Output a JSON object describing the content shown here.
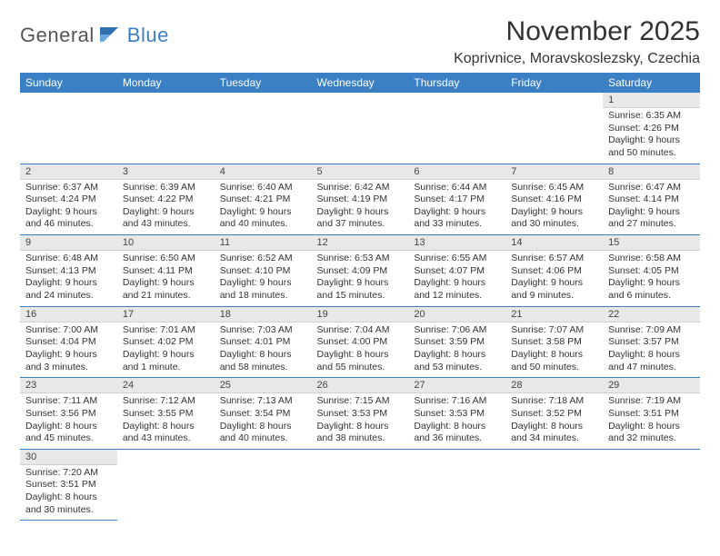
{
  "logo": {
    "part1": "General",
    "part2": "Blue"
  },
  "title": "November 2025",
  "location": "Koprivnice, Moravskoslezsky, Czechia",
  "headers": [
    "Sunday",
    "Monday",
    "Tuesday",
    "Wednesday",
    "Thursday",
    "Friday",
    "Saturday"
  ],
  "colors": {
    "header_bg": "#3b7fc4",
    "header_fg": "#ffffff",
    "daynum_bg": "#e8e8e8",
    "border": "#3b7fc4",
    "text": "#333333"
  },
  "weeks": [
    [
      null,
      null,
      null,
      null,
      null,
      null,
      {
        "n": "1",
        "sr": "Sunrise: 6:35 AM",
        "ss": "Sunset: 4:26 PM",
        "dl": "Daylight: 9 hours and 50 minutes."
      }
    ],
    [
      {
        "n": "2",
        "sr": "Sunrise: 6:37 AM",
        "ss": "Sunset: 4:24 PM",
        "dl": "Daylight: 9 hours and 46 minutes."
      },
      {
        "n": "3",
        "sr": "Sunrise: 6:39 AM",
        "ss": "Sunset: 4:22 PM",
        "dl": "Daylight: 9 hours and 43 minutes."
      },
      {
        "n": "4",
        "sr": "Sunrise: 6:40 AM",
        "ss": "Sunset: 4:21 PM",
        "dl": "Daylight: 9 hours and 40 minutes."
      },
      {
        "n": "5",
        "sr": "Sunrise: 6:42 AM",
        "ss": "Sunset: 4:19 PM",
        "dl": "Daylight: 9 hours and 37 minutes."
      },
      {
        "n": "6",
        "sr": "Sunrise: 6:44 AM",
        "ss": "Sunset: 4:17 PM",
        "dl": "Daylight: 9 hours and 33 minutes."
      },
      {
        "n": "7",
        "sr": "Sunrise: 6:45 AM",
        "ss": "Sunset: 4:16 PM",
        "dl": "Daylight: 9 hours and 30 minutes."
      },
      {
        "n": "8",
        "sr": "Sunrise: 6:47 AM",
        "ss": "Sunset: 4:14 PM",
        "dl": "Daylight: 9 hours and 27 minutes."
      }
    ],
    [
      {
        "n": "9",
        "sr": "Sunrise: 6:48 AM",
        "ss": "Sunset: 4:13 PM",
        "dl": "Daylight: 9 hours and 24 minutes."
      },
      {
        "n": "10",
        "sr": "Sunrise: 6:50 AM",
        "ss": "Sunset: 4:11 PM",
        "dl": "Daylight: 9 hours and 21 minutes."
      },
      {
        "n": "11",
        "sr": "Sunrise: 6:52 AM",
        "ss": "Sunset: 4:10 PM",
        "dl": "Daylight: 9 hours and 18 minutes."
      },
      {
        "n": "12",
        "sr": "Sunrise: 6:53 AM",
        "ss": "Sunset: 4:09 PM",
        "dl": "Daylight: 9 hours and 15 minutes."
      },
      {
        "n": "13",
        "sr": "Sunrise: 6:55 AM",
        "ss": "Sunset: 4:07 PM",
        "dl": "Daylight: 9 hours and 12 minutes."
      },
      {
        "n": "14",
        "sr": "Sunrise: 6:57 AM",
        "ss": "Sunset: 4:06 PM",
        "dl": "Daylight: 9 hours and 9 minutes."
      },
      {
        "n": "15",
        "sr": "Sunrise: 6:58 AM",
        "ss": "Sunset: 4:05 PM",
        "dl": "Daylight: 9 hours and 6 minutes."
      }
    ],
    [
      {
        "n": "16",
        "sr": "Sunrise: 7:00 AM",
        "ss": "Sunset: 4:04 PM",
        "dl": "Daylight: 9 hours and 3 minutes."
      },
      {
        "n": "17",
        "sr": "Sunrise: 7:01 AM",
        "ss": "Sunset: 4:02 PM",
        "dl": "Daylight: 9 hours and 1 minute."
      },
      {
        "n": "18",
        "sr": "Sunrise: 7:03 AM",
        "ss": "Sunset: 4:01 PM",
        "dl": "Daylight: 8 hours and 58 minutes."
      },
      {
        "n": "19",
        "sr": "Sunrise: 7:04 AM",
        "ss": "Sunset: 4:00 PM",
        "dl": "Daylight: 8 hours and 55 minutes."
      },
      {
        "n": "20",
        "sr": "Sunrise: 7:06 AM",
        "ss": "Sunset: 3:59 PM",
        "dl": "Daylight: 8 hours and 53 minutes."
      },
      {
        "n": "21",
        "sr": "Sunrise: 7:07 AM",
        "ss": "Sunset: 3:58 PM",
        "dl": "Daylight: 8 hours and 50 minutes."
      },
      {
        "n": "22",
        "sr": "Sunrise: 7:09 AM",
        "ss": "Sunset: 3:57 PM",
        "dl": "Daylight: 8 hours and 47 minutes."
      }
    ],
    [
      {
        "n": "23",
        "sr": "Sunrise: 7:11 AM",
        "ss": "Sunset: 3:56 PM",
        "dl": "Daylight: 8 hours and 45 minutes."
      },
      {
        "n": "24",
        "sr": "Sunrise: 7:12 AM",
        "ss": "Sunset: 3:55 PM",
        "dl": "Daylight: 8 hours and 43 minutes."
      },
      {
        "n": "25",
        "sr": "Sunrise: 7:13 AM",
        "ss": "Sunset: 3:54 PM",
        "dl": "Daylight: 8 hours and 40 minutes."
      },
      {
        "n": "26",
        "sr": "Sunrise: 7:15 AM",
        "ss": "Sunset: 3:53 PM",
        "dl": "Daylight: 8 hours and 38 minutes."
      },
      {
        "n": "27",
        "sr": "Sunrise: 7:16 AM",
        "ss": "Sunset: 3:53 PM",
        "dl": "Daylight: 8 hours and 36 minutes."
      },
      {
        "n": "28",
        "sr": "Sunrise: 7:18 AM",
        "ss": "Sunset: 3:52 PM",
        "dl": "Daylight: 8 hours and 34 minutes."
      },
      {
        "n": "29",
        "sr": "Sunrise: 7:19 AM",
        "ss": "Sunset: 3:51 PM",
        "dl": "Daylight: 8 hours and 32 minutes."
      }
    ],
    [
      {
        "n": "30",
        "sr": "Sunrise: 7:20 AM",
        "ss": "Sunset: 3:51 PM",
        "dl": "Daylight: 8 hours and 30 minutes."
      },
      null,
      null,
      null,
      null,
      null,
      null
    ]
  ]
}
